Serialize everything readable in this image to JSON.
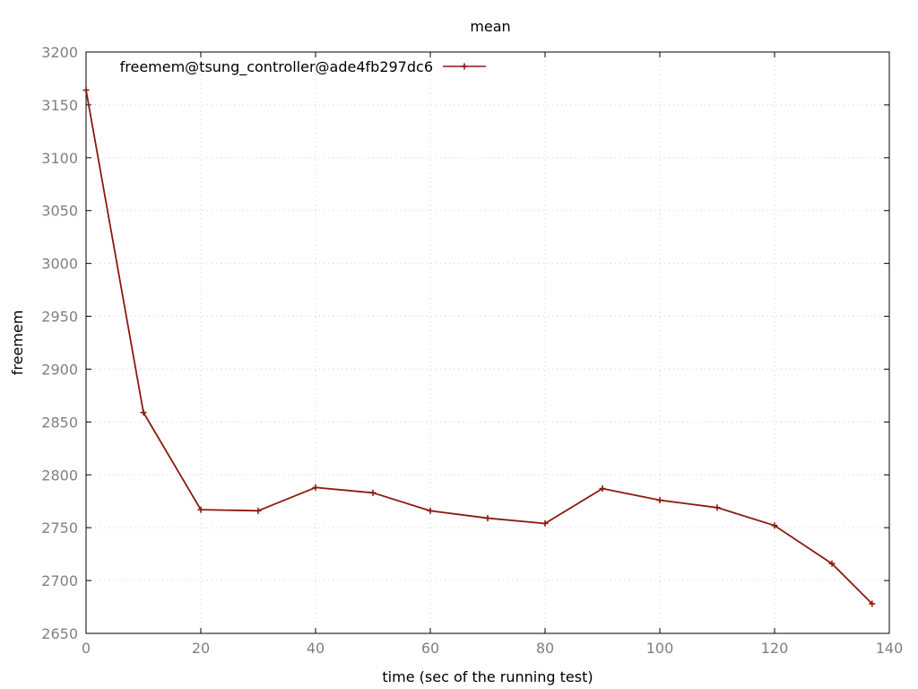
{
  "chart_data": {
    "type": "line",
    "title": "mean",
    "xlabel": "time (sec of the running test)",
    "ylabel": "freemem",
    "xlim": [
      0,
      140
    ],
    "ylim": [
      2650,
      3200
    ],
    "xticks": [
      0,
      20,
      40,
      60,
      80,
      100,
      120,
      140
    ],
    "yticks": [
      2650,
      2700,
      2750,
      2800,
      2850,
      2900,
      2950,
      3000,
      3050,
      3100,
      3150,
      3200
    ],
    "grid": true,
    "legend_position": "top-left",
    "series": [
      {
        "name": "freemem@tsung_controller@ade4fb297dc6",
        "color": "#8b1a0e",
        "x": [
          0,
          10,
          20,
          30,
          40,
          50,
          60,
          70,
          80,
          90,
          100,
          110,
          120,
          130,
          137
        ],
        "y": [
          3164,
          2859,
          2767,
          2766,
          2788,
          2783,
          2766,
          2759,
          2754,
          2787,
          2776,
          2769,
          2752,
          2716,
          2678
        ]
      }
    ]
  }
}
